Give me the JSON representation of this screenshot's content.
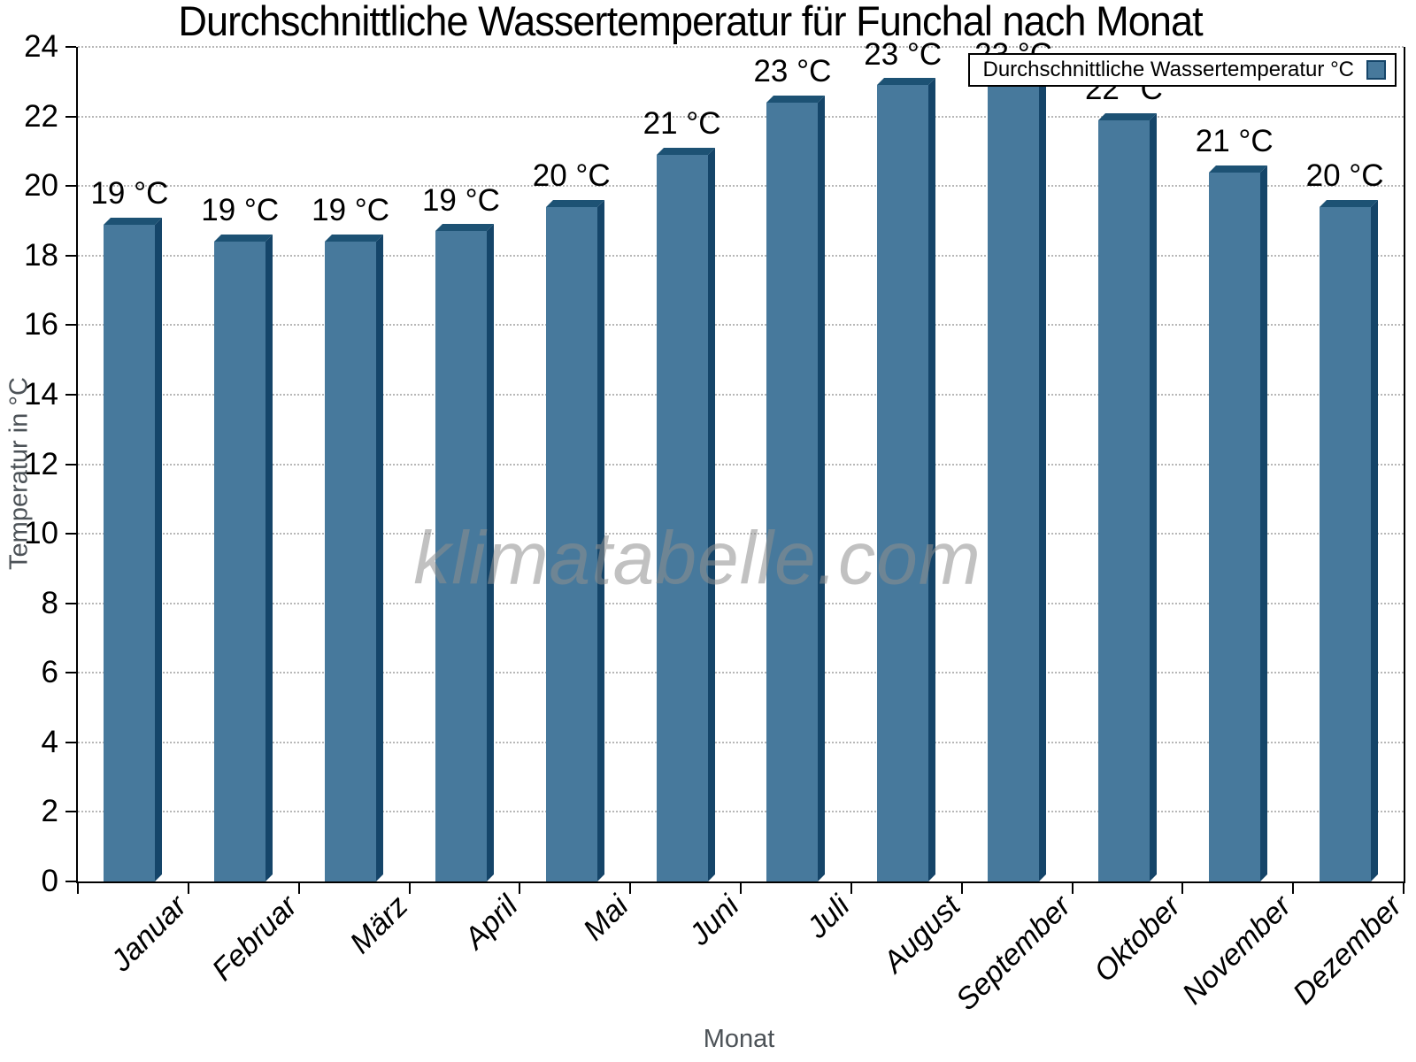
{
  "title": "Durchschnittliche Wassertemperatur für Funchal nach Monat",
  "watermark": "klimatabelle.com",
  "legend": {
    "label": "Durchschnittliche Wassertemperatur °C",
    "position": "top-right"
  },
  "colors": {
    "bar_main": "#47799C",
    "bar_top": "#1D5274",
    "bar_side": "#154569",
    "gridline": "#B7B7B7",
    "axis": "#000000",
    "axis_title_text": "#4C5257",
    "watermark_text": "#8F8F8F"
  },
  "chart_data": {
    "type": "bar",
    "title": "Durchschnittliche Wassertemperatur für Funchal nach Monat",
    "categories": [
      "Januar",
      "Februar",
      "März",
      "April",
      "Mai",
      "Juni",
      "Juli",
      "August",
      "September",
      "Oktober",
      "November",
      "Dezember"
    ],
    "values": [
      19.1,
      18.6,
      18.6,
      18.9,
      19.6,
      21.1,
      22.6,
      23.1,
      23.1,
      22.1,
      20.6,
      19.6
    ],
    "bar_labels": [
      "19 °C",
      "19 °C",
      "19 °C",
      "19 °C",
      "20 °C",
      "21 °C",
      "23 °C",
      "23 °C",
      "23 °C",
      "22 °C",
      "21 °C",
      "20 °C"
    ],
    "xlabel": "Monat",
    "ylabel": "Temperatur in °C",
    "ylim": [
      0,
      24
    ],
    "yticks": [
      0,
      2,
      4,
      6,
      8,
      10,
      12,
      14,
      16,
      18,
      20,
      22,
      24
    ],
    "grid": "horizontal dotted at every 2 °C",
    "legend_entries": [
      "Durchschnittliche Wassertemperatur °C"
    ],
    "legend_position": "top-right",
    "bar_style": "pseudo-3d column, beveled top and right shadow face"
  }
}
